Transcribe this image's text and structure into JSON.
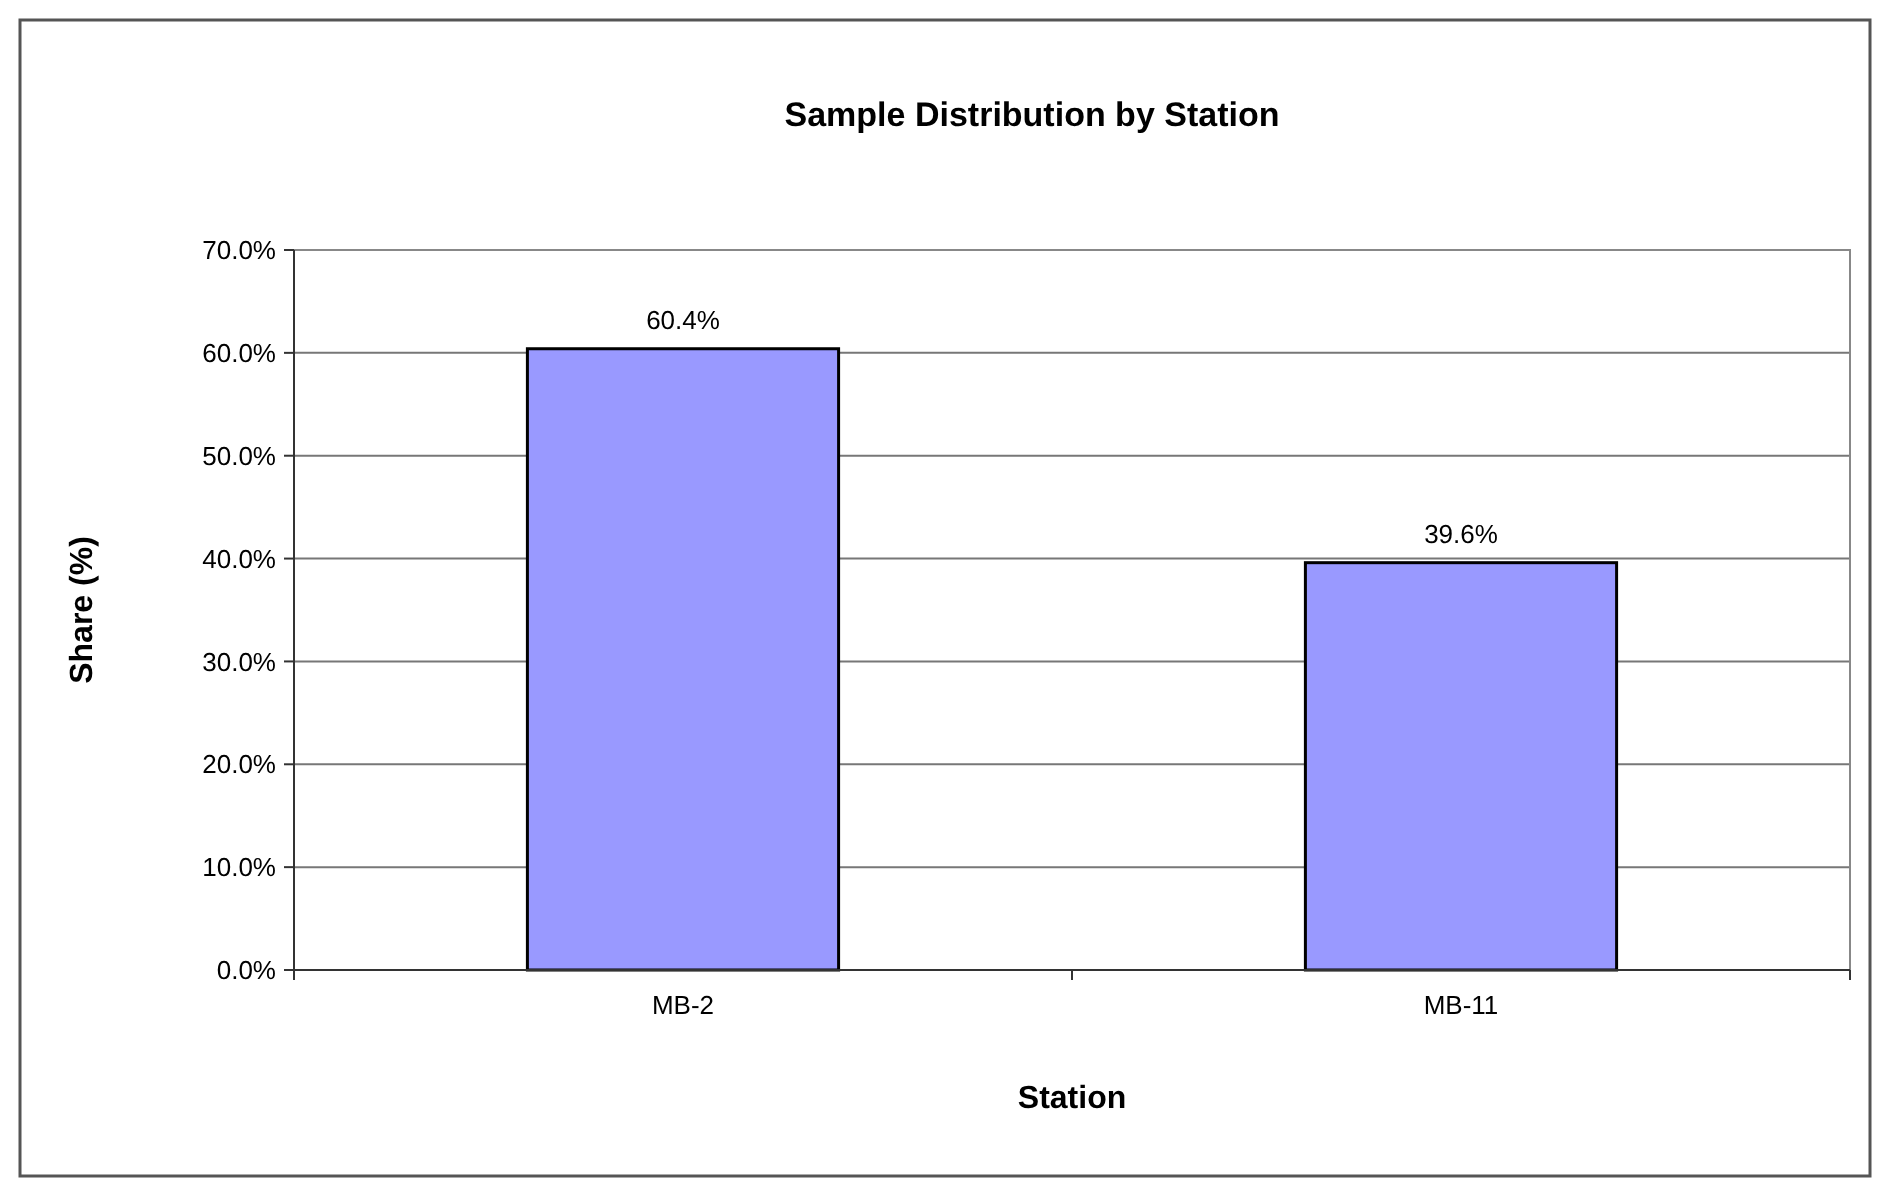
{
  "chart_data": {
    "type": "bar",
    "title": "Sample Distribution by Station",
    "xlabel": "Station",
    "ylabel": "Share (%)",
    "categories": [
      "MB-2",
      "MB-11"
    ],
    "values": [
      60.4,
      39.6
    ],
    "value_labels": [
      "60.4%",
      "39.6%"
    ],
    "color": "#9999ff",
    "ylim": [
      0,
      70
    ],
    "yticks": [
      {
        "value": 0,
        "label": "0.0%"
      },
      {
        "value": 10,
        "label": "10.0%"
      },
      {
        "value": 20,
        "label": "20.0%"
      },
      {
        "value": 30,
        "label": "30.0%"
      },
      {
        "value": 40,
        "label": "40.0%"
      },
      {
        "value": 50,
        "label": "50.0%"
      },
      {
        "value": 60,
        "label": "60.0%"
      },
      {
        "value": 70,
        "label": "70.0%"
      }
    ],
    "grid": "y"
  }
}
